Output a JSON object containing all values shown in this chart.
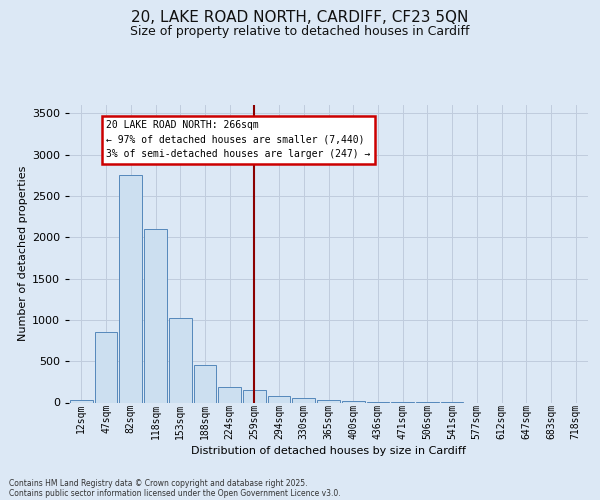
{
  "title_line1": "20, LAKE ROAD NORTH, CARDIFF, CF23 5QN",
  "title_line2": "Size of property relative to detached houses in Cardiff",
  "xlabel": "Distribution of detached houses by size in Cardiff",
  "ylabel": "Number of detached properties",
  "bar_color": "#ccdff0",
  "bar_edge_color": "#5588bb",
  "background_color": "#dce8f5",
  "categories": [
    "12sqm",
    "47sqm",
    "82sqm",
    "118sqm",
    "153sqm",
    "188sqm",
    "224sqm",
    "259sqm",
    "294sqm",
    "330sqm",
    "365sqm",
    "400sqm",
    "436sqm",
    "471sqm",
    "506sqm",
    "541sqm",
    "577sqm",
    "612sqm",
    "647sqm",
    "683sqm",
    "718sqm"
  ],
  "values": [
    25,
    850,
    2750,
    2100,
    1020,
    450,
    185,
    155,
    75,
    55,
    30,
    15,
    8,
    5,
    2,
    1,
    0,
    0,
    0,
    0,
    0
  ],
  "ylim": [
    0,
    3600
  ],
  "yticks": [
    0,
    500,
    1000,
    1500,
    2000,
    2500,
    3000,
    3500
  ],
  "red_line_x": 7,
  "annotation_title": "20 LAKE ROAD NORTH: 266sqm",
  "annotation_line2": "← 97% of detached houses are smaller (7,440)",
  "annotation_line3": "3% of semi-detached houses are larger (247) →",
  "red_line_color": "#8b0000",
  "annotation_box_bg": "#ffffff",
  "annotation_box_edge": "#cc0000",
  "footer_line1": "Contains HM Land Registry data © Crown copyright and database right 2025.",
  "footer_line2": "Contains public sector information licensed under the Open Government Licence v3.0.",
  "grid_color": "#c0ccdd",
  "title_fontsize": 11,
  "subtitle_fontsize": 9,
  "xlabel_fontsize": 8,
  "ylabel_fontsize": 8,
  "tick_fontsize": 7,
  "annot_fontsize": 7,
  "footer_fontsize": 5.5
}
